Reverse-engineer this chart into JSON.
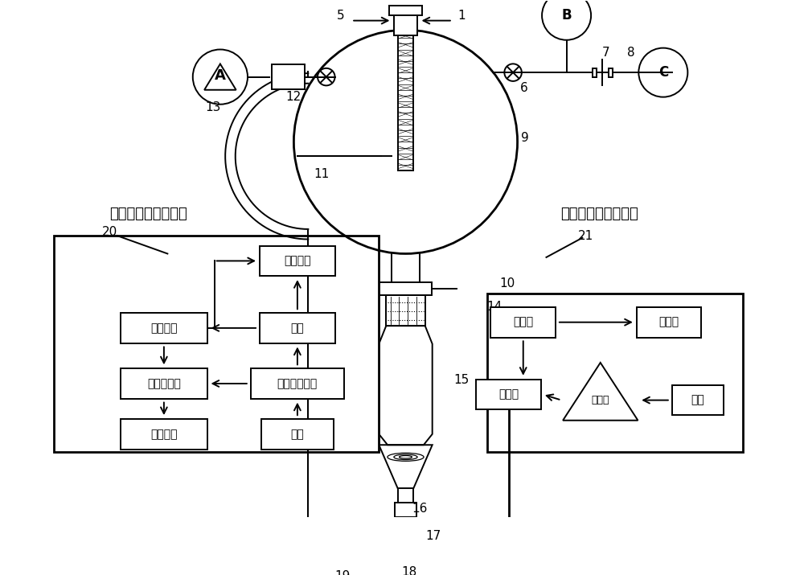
{
  "bg_color": "#ffffff",
  "lc": "#000000",
  "label_A": "A",
  "label_B": "B",
  "label_C": "C",
  "label_gc_ms": "气相色谱质谱联用仪",
  "label_uv": "紫外可见分光光度计",
  "box_vacuum": "真空系统",
  "box_interface": "接口",
  "box_ms": "质谱单元",
  "box_computer": "计算机系统",
  "box_data": "数据分析",
  "box_gc": "气相色谱单元",
  "box_sample": "样品",
  "box_detector": "检测器",
  "box_display": "显示器",
  "box_cell": "样品池",
  "box_mono": "单色器",
  "box_light": "光源"
}
